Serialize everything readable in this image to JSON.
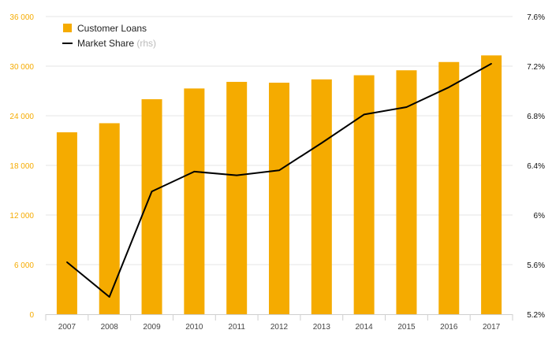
{
  "chart_data": {
    "type": "bar",
    "categories": [
      "2007",
      "2008",
      "2009",
      "2010",
      "2011",
      "2012",
      "2013",
      "2014",
      "2015",
      "2016",
      "2017"
    ],
    "series": [
      {
        "name": "Customer Loans",
        "type": "bar",
        "axis": "left",
        "color": "#f5ab00",
        "values": [
          22000,
          23100,
          26000,
          27300,
          28100,
          28000,
          28400,
          28900,
          29500,
          30500,
          31300
        ]
      },
      {
        "name": "Market Share",
        "type": "line",
        "axis": "right",
        "color": "#000000",
        "values": [
          5.62,
          5.34,
          6.19,
          6.35,
          6.32,
          6.36,
          6.58,
          6.81,
          6.87,
          7.03,
          7.22
        ]
      }
    ],
    "y_left": {
      "range": [
        0,
        36000
      ],
      "ticks": [
        0,
        6000,
        12000,
        18000,
        24000,
        30000,
        36000
      ],
      "tick_labels": [
        "0",
        "6 000",
        "12 000",
        "18 000",
        "24 000",
        "30 000",
        "36 000"
      ]
    },
    "y_right": {
      "range": [
        5.2,
        7.6
      ],
      "ticks": [
        5.2,
        5.6,
        6.0,
        6.4,
        6.8,
        7.2,
        7.6
      ],
      "tick_labels": [
        "5.2%",
        "5.6%",
        "6%",
        "6.4%",
        "6.8%",
        "7.2%",
        "7.6%"
      ]
    },
    "legend": {
      "position": "top-left",
      "items": [
        {
          "label": "Customer Loans",
          "marker": "bar",
          "color": "#f5ab00"
        },
        {
          "label": "Market Share",
          "note": "(rhs)",
          "marker": "line",
          "color": "#000000"
        }
      ]
    },
    "grid": true
  }
}
